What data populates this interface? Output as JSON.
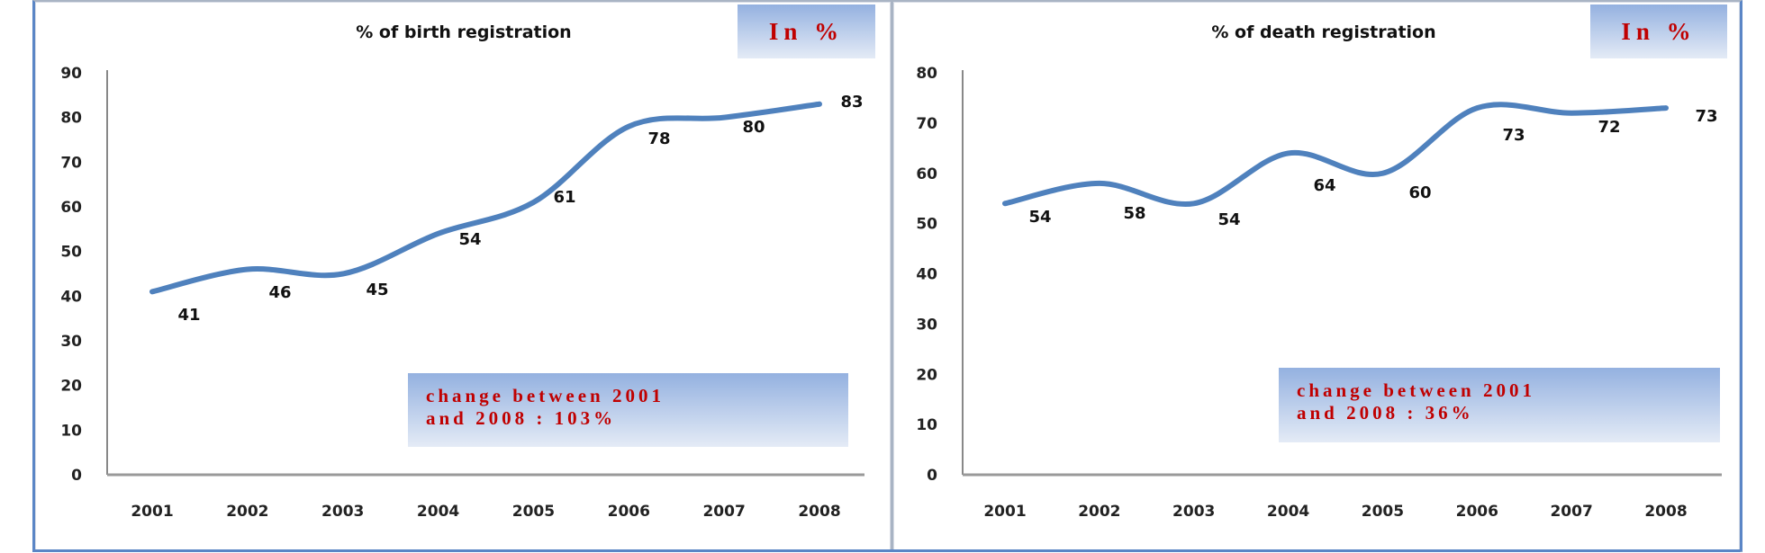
{
  "chart_data": [
    {
      "type": "line",
      "title": "% of birth registration",
      "unit_badge": "In %",
      "annotation": "change between 2001\nand 2008 : 103%",
      "categories": [
        "2001",
        "2002",
        "2003",
        "2004",
        "2005",
        "2006",
        "2007",
        "2008"
      ],
      "values": [
        41,
        46,
        45,
        54,
        61,
        78,
        80,
        83
      ],
      "ylim": [
        0,
        90
      ],
      "yticks": [
        "0",
        "10",
        "20",
        "30",
        "40",
        "50",
        "60",
        "70",
        "80",
        "90"
      ],
      "line_color": "#4f81bd",
      "grid": false
    },
    {
      "type": "line",
      "title": "%  of death registration",
      "unit_badge": "In %",
      "annotation": " change between 2001\nand 2008 : 36%",
      "categories": [
        "2001",
        "2002",
        "2003",
        "2004",
        "2005",
        "2006",
        "2007",
        "2008"
      ],
      "values": [
        54,
        58,
        54,
        64,
        60,
        73,
        72,
        73
      ],
      "ylim": [
        0,
        80
      ],
      "yticks": [
        "0",
        "10",
        "20",
        "30",
        "40",
        "50",
        "60",
        "70",
        "80"
      ],
      "line_color": "#4f81bd",
      "grid": false
    }
  ]
}
